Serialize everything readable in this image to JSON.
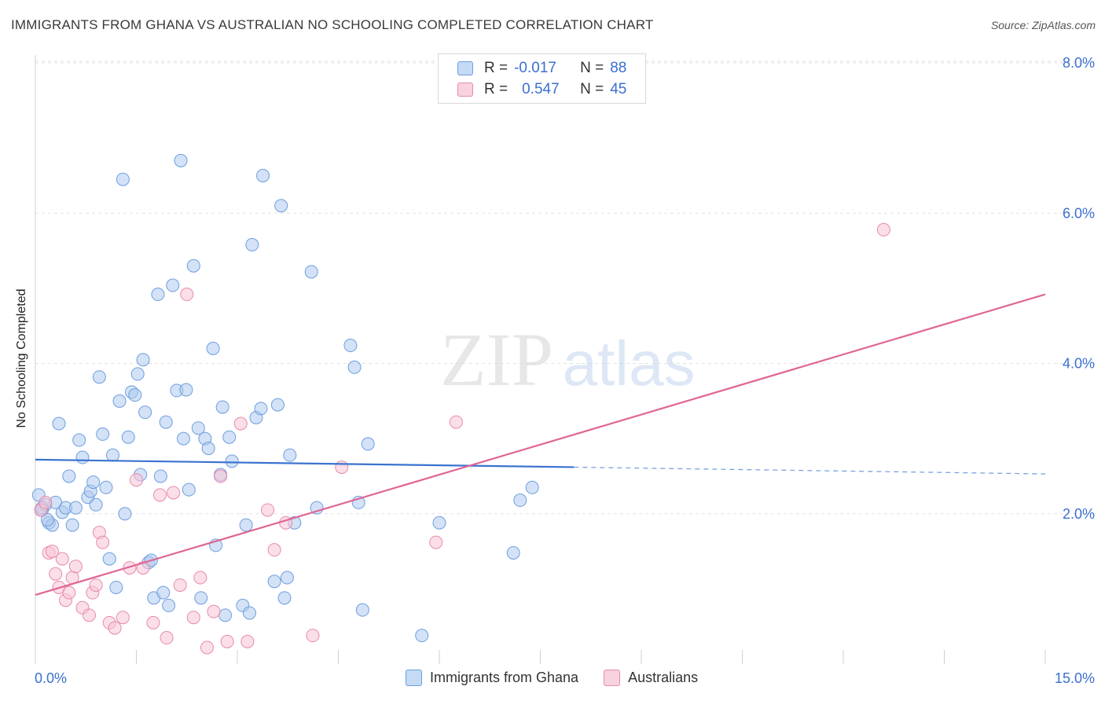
{
  "title": "IMMIGRANTS FROM GHANA VS AUSTRALIAN NO SCHOOLING COMPLETED CORRELATION CHART",
  "source": "Source: ZipAtlas.com",
  "watermark": {
    "zip": "ZIP",
    "atlas": "atlas"
  },
  "legend": {
    "rows": [
      {
        "r_label": "R =",
        "r_value": "-0.017",
        "n_label": "N =",
        "n_value": "88",
        "color": "#aecbef",
        "border": "#6e9ee0"
      },
      {
        "r_label": "R =",
        "r_value": "0.547",
        "n_label": "N =",
        "n_value": "45",
        "color": "#f7c4d5",
        "border": "#e88aaa"
      }
    ]
  },
  "bottom_legend": {
    "ghana": "Immigrants from Ghana",
    "australians": "Australians"
  },
  "chart_data": {
    "type": "scatter",
    "title": "IMMIGRANTS FROM GHANA VS AUSTRALIAN NO SCHOOLING COMPLETED CORRELATION CHART",
    "xlabel": "",
    "ylabel": "No Schooling Completed",
    "xlim": [
      0,
      15
    ],
    "ylim": [
      0,
      8
    ],
    "x_tick_labels": [
      {
        "value": 0,
        "label": "0.0%"
      },
      {
        "value": 15,
        "label": "15.0%"
      }
    ],
    "y_tick_labels": [
      {
        "value": 2,
        "label": "2.0%"
      },
      {
        "value": 4,
        "label": "4.0%"
      },
      {
        "value": 6,
        "label": "6.0%"
      },
      {
        "value": 8,
        "label": "8.0%"
      }
    ],
    "grid": true,
    "legend_placement": "top-center",
    "series": [
      {
        "name": "Immigrants from Ghana",
        "color": "#aecbef",
        "stroke": "#6e9ee0",
        "points": [
          [
            0.05,
            2.25
          ],
          [
            0.1,
            2.05
          ],
          [
            0.15,
            2.12
          ],
          [
            0.2,
            1.88
          ],
          [
            0.25,
            1.85
          ],
          [
            0.3,
            2.15
          ],
          [
            0.35,
            3.2
          ],
          [
            0.4,
            2.02
          ],
          [
            0.45,
            2.08
          ],
          [
            0.5,
            2.5
          ],
          [
            0.55,
            1.85
          ],
          [
            0.6,
            2.08
          ],
          [
            0.65,
            2.98
          ],
          [
            0.7,
            2.75
          ],
          [
            0.78,
            2.22
          ],
          [
            0.82,
            2.3
          ],
          [
            0.86,
            2.42
          ],
          [
            0.9,
            2.12
          ],
          [
            0.95,
            3.82
          ],
          [
            1.0,
            3.06
          ],
          [
            1.05,
            2.35
          ],
          [
            1.1,
            1.4
          ],
          [
            1.15,
            2.78
          ],
          [
            1.2,
            1.02
          ],
          [
            1.25,
            3.5
          ],
          [
            1.3,
            6.45
          ],
          [
            1.33,
            2.0
          ],
          [
            1.38,
            3.02
          ],
          [
            1.43,
            3.62
          ],
          [
            1.48,
            3.58
          ],
          [
            1.52,
            3.86
          ],
          [
            1.56,
            2.52
          ],
          [
            1.6,
            4.05
          ],
          [
            1.63,
            3.35
          ],
          [
            1.68,
            1.35
          ],
          [
            1.72,
            1.38
          ],
          [
            1.76,
            0.88
          ],
          [
            1.82,
            4.92
          ],
          [
            1.86,
            2.5
          ],
          [
            1.9,
            0.95
          ],
          [
            1.94,
            3.22
          ],
          [
            1.98,
            0.78
          ],
          [
            2.04,
            5.04
          ],
          [
            2.1,
            3.64
          ],
          [
            2.16,
            6.7
          ],
          [
            2.2,
            3.0
          ],
          [
            2.24,
            3.65
          ],
          [
            2.28,
            2.32
          ],
          [
            2.35,
            5.3
          ],
          [
            2.42,
            3.14
          ],
          [
            2.46,
            0.88
          ],
          [
            2.52,
            3.0
          ],
          [
            2.57,
            2.87
          ],
          [
            2.64,
            4.2
          ],
          [
            2.68,
            1.58
          ],
          [
            2.75,
            2.52
          ],
          [
            2.78,
            3.42
          ],
          [
            2.82,
            0.65
          ],
          [
            2.88,
            3.02
          ],
          [
            2.92,
            2.7
          ],
          [
            3.08,
            0.78
          ],
          [
            3.13,
            1.85
          ],
          [
            3.18,
            0.68
          ],
          [
            3.22,
            5.58
          ],
          [
            3.28,
            3.28
          ],
          [
            3.35,
            3.4
          ],
          [
            3.38,
            6.5
          ],
          [
            3.55,
            1.1
          ],
          [
            3.6,
            3.45
          ],
          [
            3.65,
            6.1
          ],
          [
            3.7,
            0.88
          ],
          [
            3.74,
            1.15
          ],
          [
            3.78,
            2.78
          ],
          [
            3.85,
            1.88
          ],
          [
            4.1,
            5.22
          ],
          [
            4.18,
            2.08
          ],
          [
            4.68,
            4.24
          ],
          [
            4.74,
            3.95
          ],
          [
            4.8,
            2.15
          ],
          [
            4.86,
            0.72
          ],
          [
            4.94,
            2.93
          ],
          [
            5.74,
            0.38
          ],
          [
            6.0,
            1.88
          ],
          [
            7.1,
            1.48
          ],
          [
            7.2,
            2.18
          ],
          [
            7.38,
            2.35
          ],
          [
            0.1,
            2.08
          ],
          [
            0.18,
            1.92
          ]
        ]
      },
      {
        "name": "Australians",
        "color": "#f7c4d5",
        "stroke": "#e88aaa",
        "points": [
          [
            0.08,
            2.05
          ],
          [
            0.15,
            2.15
          ],
          [
            0.2,
            1.48
          ],
          [
            0.25,
            1.5
          ],
          [
            0.3,
            1.2
          ],
          [
            0.35,
            1.02
          ],
          [
            0.4,
            1.4
          ],
          [
            0.45,
            0.85
          ],
          [
            0.5,
            0.95
          ],
          [
            0.55,
            1.15
          ],
          [
            0.6,
            1.3
          ],
          [
            0.7,
            0.75
          ],
          [
            0.8,
            0.65
          ],
          [
            0.85,
            0.95
          ],
          [
            0.9,
            1.05
          ],
          [
            0.95,
            1.75
          ],
          [
            1.0,
            1.62
          ],
          [
            1.1,
            0.55
          ],
          [
            1.18,
            0.48
          ],
          [
            1.3,
            0.62
          ],
          [
            1.4,
            1.28
          ],
          [
            1.5,
            2.45
          ],
          [
            1.6,
            1.28
          ],
          [
            1.75,
            0.55
          ],
          [
            1.85,
            2.25
          ],
          [
            1.95,
            0.35
          ],
          [
            2.05,
            2.28
          ],
          [
            2.15,
            1.05
          ],
          [
            2.25,
            4.92
          ],
          [
            2.35,
            0.62
          ],
          [
            2.45,
            1.15
          ],
          [
            2.55,
            0.22
          ],
          [
            2.65,
            0.7
          ],
          [
            2.75,
            2.5
          ],
          [
            2.85,
            0.3
          ],
          [
            3.05,
            3.2
          ],
          [
            3.15,
            0.3
          ],
          [
            3.45,
            2.05
          ],
          [
            3.55,
            1.52
          ],
          [
            3.72,
            1.88
          ],
          [
            4.12,
            0.38
          ],
          [
            4.55,
            2.62
          ],
          [
            5.95,
            1.62
          ],
          [
            6.25,
            3.22
          ],
          [
            12.6,
            5.78
          ]
        ]
      }
    ],
    "trend_lines": [
      {
        "series": "Immigrants from Ghana",
        "x": [
          0,
          8
        ],
        "y": [
          2.72,
          2.62
        ],
        "dashed_x": [
          8,
          15
        ],
        "dashed_y": [
          2.62,
          2.53
        ]
      },
      {
        "series": "Australians",
        "x": [
          0,
          15
        ],
        "y": [
          0.92,
          4.92
        ]
      }
    ]
  }
}
